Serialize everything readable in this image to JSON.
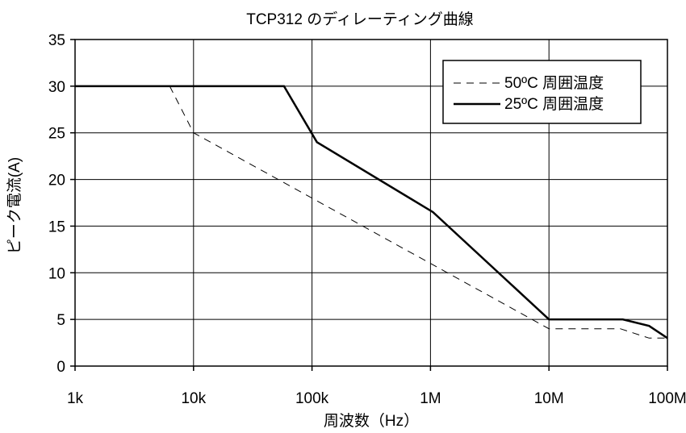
{
  "chart_data": {
    "type": "line",
    "title": "TCP312 のディレーティング曲線",
    "xlabel": "周波数（Hz）",
    "ylabel": "ピーク電流(A)",
    "x_scale": "log",
    "xlim": [
      1000,
      100000000
    ],
    "ylim": [
      0,
      35
    ],
    "x_ticks": [
      {
        "value": 1000,
        "label": "1k"
      },
      {
        "value": 10000,
        "label": "10k"
      },
      {
        "value": 100000,
        "label": "100k"
      },
      {
        "value": 1000000,
        "label": "1M"
      },
      {
        "value": 10000000,
        "label": "10M"
      },
      {
        "value": 100000000,
        "label": "100M"
      }
    ],
    "y_ticks": [
      {
        "value": 0,
        "label": "0"
      },
      {
        "value": 5,
        "label": "5"
      },
      {
        "value": 10,
        "label": "10"
      },
      {
        "value": 15,
        "label": "15"
      },
      {
        "value": 20,
        "label": "20"
      },
      {
        "value": 25,
        "label": "25"
      },
      {
        "value": 30,
        "label": "30"
      },
      {
        "value": 35,
        "label": "35"
      }
    ],
    "grid": true,
    "legend_position": "top-right",
    "series": [
      {
        "name": "50ºC 周囲温度",
        "style": "dashed",
        "color": "#000000",
        "points": [
          [
            6300,
            30
          ],
          [
            10000,
            25
          ],
          [
            10000000,
            4
          ],
          [
            40000000,
            4
          ],
          [
            70000000,
            3
          ],
          [
            100000000,
            3
          ]
        ]
      },
      {
        "name": "25ºC 周囲温度",
        "style": "solid",
        "color": "#000000",
        "points": [
          [
            1000,
            30
          ],
          [
            58000,
            30
          ],
          [
            110000,
            24
          ],
          [
            1050000,
            16.5
          ],
          [
            10000000,
            5
          ],
          [
            42000000,
            5
          ],
          [
            70000000,
            4.3
          ],
          [
            100000000,
            3
          ]
        ]
      }
    ]
  }
}
